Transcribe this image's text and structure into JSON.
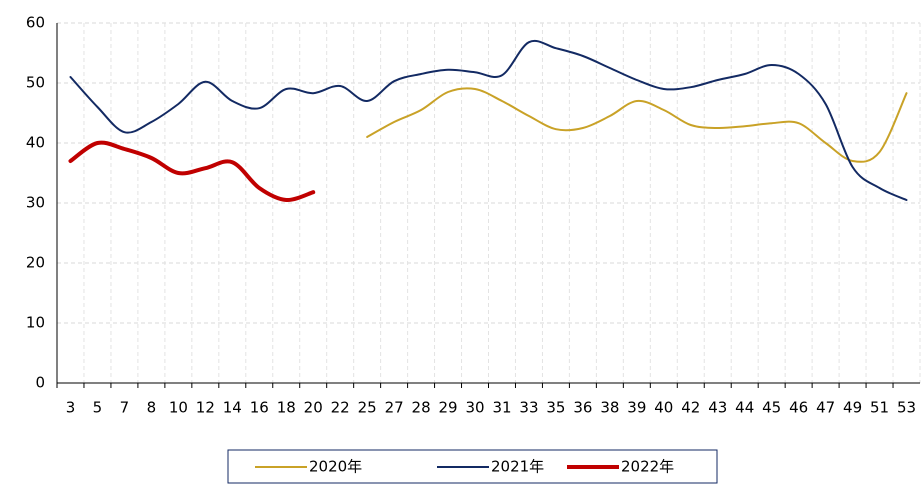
{
  "chart_data": {
    "type": "line",
    "categories": [
      "3",
      "5",
      "7",
      "8",
      "10",
      "12",
      "14",
      "16",
      "18",
      "20",
      "22",
      "25",
      "27",
      "28",
      "29",
      "30",
      "31",
      "33",
      "35",
      "36",
      "38",
      "39",
      "40",
      "42",
      "43",
      "44",
      "45",
      "46",
      "47",
      "49",
      "51",
      "53"
    ],
    "series": [
      {
        "name": "2020年",
        "color": "#c9a227",
        "width": 2,
        "values": [
          null,
          null,
          null,
          null,
          null,
          null,
          null,
          null,
          null,
          null,
          null,
          41,
          43.5,
          45.5,
          48.5,
          49,
          47,
          44.5,
          42.3,
          42.5,
          44.5,
          47,
          45.5,
          43,
          42.5,
          42.8,
          43.3,
          43.3,
          40,
          37,
          38.5,
          48.3
        ]
      },
      {
        "name": "2021年",
        "color": "#132a63",
        "width": 2,
        "values": [
          51,
          46,
          41.8,
          43.5,
          46.5,
          50.2,
          47,
          45.8,
          49,
          48.3,
          49.5,
          47,
          50.3,
          51.5,
          52.2,
          51.8,
          51.3,
          56.8,
          55.8,
          54.5,
          52.5,
          50.5,
          49,
          49.3,
          50.5,
          51.5,
          53,
          51.5,
          46.5,
          36,
          32.5,
          30.5
        ]
      },
      {
        "name": "2022年",
        "color": "#c00000",
        "width": 4,
        "values": [
          37,
          40,
          39,
          37.5,
          35,
          35.8,
          36.8,
          32.5,
          30.5,
          31.8,
          null,
          null,
          null,
          null,
          null,
          null,
          null,
          null,
          null,
          null,
          null,
          null,
          null,
          null,
          null,
          null,
          null,
          null,
          null,
          null,
          null,
          null
        ]
      }
    ],
    "ylim": [
      0,
      60
    ],
    "yticks": [
      0,
      10,
      20,
      30,
      40,
      50,
      60
    ],
    "grid": true,
    "legend": "bottom"
  }
}
